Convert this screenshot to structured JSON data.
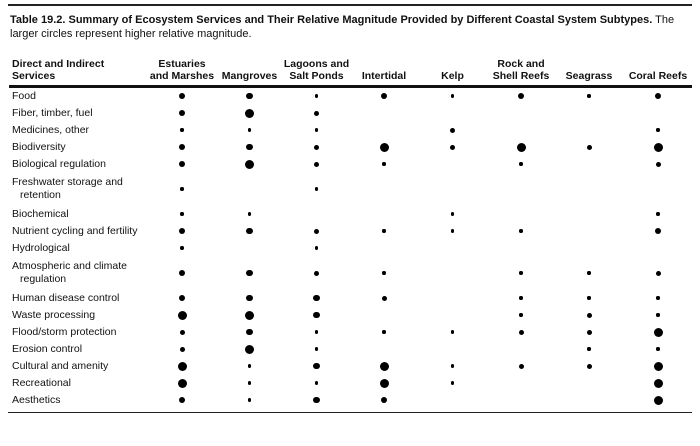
{
  "caption": {
    "bold": "Table 19.2.  Summary of Ecosystem Services and Their Relative Magnitude Provided by Different Coastal System Subtypes.",
    "note": " The larger circles represent higher relative magnitude."
  },
  "chart_data": {
    "type": "table",
    "subtype": "dot-magnitude-matrix",
    "title": "Table 19.2. Summary of Ecosystem Services and Their Relative Magnitude Provided by Different Coastal System Subtypes",
    "legend_note": "The larger circles represent higher relative magnitude.",
    "magnitude_levels": {
      "0": "none",
      "1": "small",
      "2": "medium",
      "3": "large",
      "4": "very-large"
    },
    "row_header_lines": [
      "Direct and Indirect",
      "Services"
    ],
    "column_header_lines": [
      [
        "Estuaries",
        "and Marshes"
      ],
      [
        "Mangroves"
      ],
      [
        "Lagoons and",
        "Salt Ponds"
      ],
      [
        "Intertidal"
      ],
      [
        "Kelp"
      ],
      [
        "Rock and",
        "Shell Reefs"
      ],
      [
        "Seagrass"
      ],
      [
        "Coral Reefs"
      ]
    ],
    "columns": [
      "Estuaries and Marshes",
      "Mangroves",
      "Lagoons and Salt Ponds",
      "Intertidal",
      "Kelp",
      "Rock and Shell Reefs",
      "Seagrass",
      "Coral Reefs"
    ],
    "rows": [
      {
        "label_lines": [
          "Food"
        ],
        "values": [
          3,
          3,
          1,
          3,
          1,
          3,
          1,
          3
        ]
      },
      {
        "label_lines": [
          "Fiber, timber, fuel"
        ],
        "values": [
          3,
          4,
          2,
          0,
          0,
          0,
          0,
          0
        ]
      },
      {
        "label_lines": [
          "Medicines, other"
        ],
        "values": [
          1,
          1,
          1,
          0,
          2,
          0,
          0,
          1
        ]
      },
      {
        "label_lines": [
          "Biodiversity"
        ],
        "values": [
          3,
          3,
          2,
          4,
          2,
          4,
          2,
          4
        ]
      },
      {
        "label_lines": [
          "Biological regulation"
        ],
        "values": [
          3,
          4,
          2,
          1,
          0,
          1,
          0,
          2
        ]
      },
      {
        "label_lines": [
          "Freshwater storage and",
          "retention"
        ],
        "values": [
          1,
          0,
          1,
          0,
          0,
          0,
          0,
          0
        ]
      },
      {
        "label_lines": [
          "Biochemical"
        ],
        "values": [
          1,
          1,
          0,
          0,
          1,
          0,
          0,
          1
        ]
      },
      {
        "label_lines": [
          "Nutrient cycling and fertility"
        ],
        "values": [
          3,
          3,
          2,
          1,
          1,
          1,
          0,
          3
        ]
      },
      {
        "label_lines": [
          "Hydrological"
        ],
        "values": [
          1,
          0,
          1,
          0,
          0,
          0,
          0,
          0
        ]
      },
      {
        "label_lines": [
          "Atmospheric and climate",
          "regulation"
        ],
        "values": [
          3,
          3,
          2,
          1,
          0,
          1,
          1,
          2
        ]
      },
      {
        "label_lines": [
          "Human disease control"
        ],
        "values": [
          3,
          3,
          3,
          2,
          0,
          1,
          1,
          1
        ]
      },
      {
        "label_lines": [
          "Waste processing"
        ],
        "values": [
          4,
          4,
          3,
          0,
          0,
          1,
          2,
          1
        ]
      },
      {
        "label_lines": [
          "Flood/storm protection"
        ],
        "values": [
          2,
          3,
          1,
          1,
          1,
          2,
          2,
          4
        ]
      },
      {
        "label_lines": [
          "Erosion control"
        ],
        "values": [
          2,
          4,
          1,
          0,
          0,
          0,
          1,
          1
        ]
      },
      {
        "label_lines": [
          "Cultural and amenity"
        ],
        "values": [
          4,
          1,
          3,
          4,
          1,
          2,
          2,
          4
        ]
      },
      {
        "label_lines": [
          "Recreational"
        ],
        "values": [
          4,
          1,
          1,
          4,
          1,
          0,
          0,
          4
        ]
      },
      {
        "label_lines": [
          "Aesthetics"
        ],
        "values": [
          3,
          1,
          3,
          3,
          0,
          0,
          0,
          4
        ]
      }
    ]
  },
  "colors": {
    "ink": "#111111",
    "dot": "#000000",
    "background": "#ffffff"
  }
}
